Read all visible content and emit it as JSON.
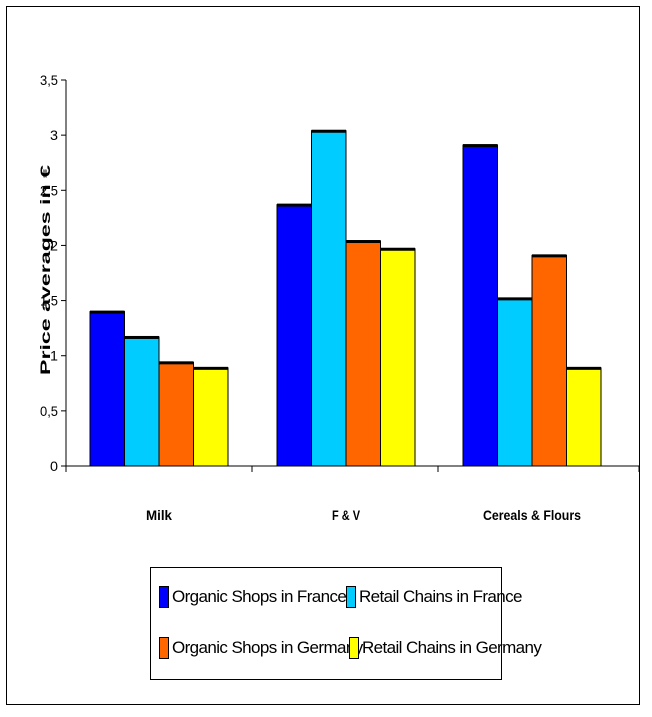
{
  "chart_data": {
    "type": "bar",
    "title": "",
    "xlabel": "",
    "ylabel": "Price averages in €",
    "categories": [
      "Milk",
      "F & V",
      "Cereals & Flours"
    ],
    "ylim": [
      0,
      3.5
    ],
    "yticks": [
      "0",
      "0,5",
      "1",
      "1,5",
      "2",
      "2,5",
      "3",
      "3,5"
    ],
    "ytick_values": [
      0,
      0.5,
      1,
      1.5,
      2,
      2.5,
      3,
      3.5
    ],
    "grid": false,
    "legend_position": "bottom",
    "series": [
      {
        "name": "Organic Shops in France",
        "color": "#0000ff",
        "values": [
          1.4,
          2.37,
          2.91
        ]
      },
      {
        "name": "Retail Chains in France",
        "color": "#00ccff",
        "values": [
          1.17,
          3.04,
          1.52
        ]
      },
      {
        "name": "Organic Shops in Germany",
        "color": "#ff6600",
        "values": [
          0.94,
          2.04,
          1.91
        ]
      },
      {
        "name": "Retail Chains in Germany",
        "color": "#ffff00",
        "values": [
          0.89,
          1.97,
          0.89
        ]
      }
    ]
  }
}
